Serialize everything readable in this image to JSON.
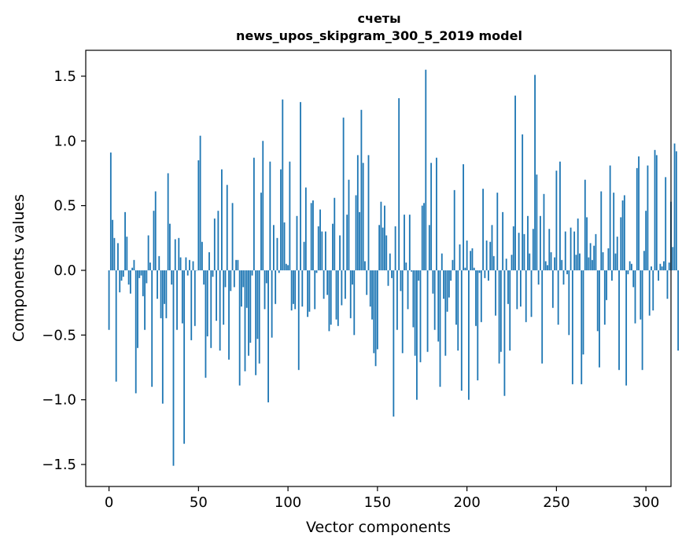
{
  "chart_data": {
    "type": "bar",
    "title_lines": [
      "счеты",
      "news_upos_skipgram_300_5_2019 model"
    ],
    "xlabel": "Vector components",
    "ylabel": "Components values",
    "xlim": [
      -13,
      314
    ],
    "ylim": [
      -1.67,
      1.7
    ],
    "xticks": [
      0,
      50,
      100,
      150,
      200,
      250,
      300
    ],
    "yticks": [
      -1.5,
      -1.0,
      -0.5,
      0.0,
      0.5,
      1.0,
      1.5
    ],
    "ytick_labels": [
      "−1.5",
      "−1.0",
      "−0.5",
      "0.0",
      "0.5",
      "1.0",
      "1.5"
    ],
    "bar_color": "#1f77b4",
    "grid": false,
    "values": [
      -0.46,
      0.91,
      0.39,
      0.25,
      -0.86,
      0.21,
      -0.17,
      -0.08,
      -0.05,
      0.45,
      0.26,
      -0.11,
      -0.18,
      0.02,
      0.08,
      -0.95,
      -0.6,
      -0.06,
      -0.04,
      -0.2,
      -0.46,
      -0.1,
      0.27,
      0.06,
      -0.9,
      0.46,
      0.61,
      -0.22,
      0.11,
      -0.37,
      -1.03,
      -0.26,
      -0.37,
      0.75,
      0.36,
      -0.11,
      -1.51,
      0.24,
      -0.46,
      0.25,
      0.1,
      -0.41,
      -1.34,
      0.1,
      -0.04,
      0.08,
      -0.54,
      0.07,
      -0.43,
      0.0,
      0.85,
      1.04,
      0.22,
      -0.11,
      -0.83,
      -0.51,
      0.14,
      -0.6,
      -0.05,
      0.4,
      -0.39,
      0.46,
      -0.62,
      0.78,
      -0.42,
      -0.13,
      0.66,
      -0.69,
      -0.16,
      0.52,
      -0.13,
      0.08,
      0.08,
      -0.89,
      -0.28,
      -0.13,
      -0.78,
      -0.29,
      -0.66,
      -0.56,
      -0.04,
      0.87,
      -0.81,
      -0.53,
      -0.72,
      0.6,
      1.0,
      -0.3,
      -0.1,
      -1.02,
      0.84,
      -0.52,
      0.35,
      -0.26,
      0.25,
      -0.02,
      0.78,
      1.32,
      0.37,
      0.05,
      0.04,
      0.84,
      -0.31,
      -0.26,
      -0.3,
      0.42,
      -0.77,
      1.3,
      -0.28,
      0.22,
      0.64,
      -0.36,
      -0.32,
      0.52,
      0.54,
      -0.3,
      -0.02,
      0.34,
      0.47,
      0.3,
      -0.22,
      0.3,
      -0.19,
      -0.47,
      -0.42,
      0.36,
      0.56,
      -0.38,
      -0.43,
      0.27,
      -0.27,
      1.18,
      -0.22,
      0.43,
      0.7,
      -0.37,
      -0.11,
      -0.5,
      0.58,
      0.89,
      0.45,
      1.24,
      0.83,
      0.07,
      -0.19,
      0.89,
      -0.28,
      -0.38,
      -0.64,
      -0.74,
      -0.61,
      0.35,
      0.53,
      0.33,
      0.5,
      0.27,
      -0.12,
      0.13,
      -0.06,
      -1.13,
      0.34,
      -0.46,
      1.33,
      -0.16,
      -0.64,
      0.43,
      0.06,
      -0.3,
      0.43,
      -0.01,
      -0.44,
      -0.66,
      -1.0,
      -0.08,
      -0.71,
      0.5,
      0.52,
      1.55,
      -0.63,
      0.35,
      0.83,
      -0.18,
      -0.46,
      0.87,
      -0.55,
      -0.9,
      0.13,
      -0.22,
      -0.66,
      -0.32,
      -0.21,
      -0.08,
      0.08,
      0.62,
      -0.42,
      -0.62,
      0.2,
      -0.93,
      0.82,
      0.02,
      0.23,
      -1.0,
      0.15,
      0.17,
      0.02,
      -0.43,
      -0.85,
      -0.02,
      -0.4,
      0.63,
      -0.06,
      0.23,
      -0.08,
      0.22,
      0.35,
      0.11,
      -0.35,
      0.6,
      -0.72,
      -0.63,
      0.45,
      -0.97,
      0.09,
      -0.26,
      -0.62,
      0.12,
      0.34,
      1.35,
      -0.3,
      0.29,
      -0.28,
      1.05,
      0.28,
      -0.4,
      0.42,
      0.13,
      -0.36,
      0.32,
      1.51,
      0.74,
      -0.11,
      0.42,
      -0.72,
      0.59,
      0.07,
      0.04,
      0.32,
      0.14,
      -0.29,
      0.1,
      0.77,
      -0.42,
      0.84,
      0.08,
      -0.11,
      0.3,
      -0.03,
      -0.5,
      0.33,
      -0.88,
      0.3,
      0.12,
      0.4,
      0.13,
      -0.88,
      -0.65,
      0.7,
      0.41,
      0.1,
      0.21,
      0.08,
      0.19,
      0.28,
      -0.47,
      -0.75,
      0.61,
      0.14,
      -0.42,
      -0.23,
      0.17,
      0.81,
      -0.08,
      0.6,
      0.13,
      0.26,
      -0.77,
      0.41,
      0.54,
      0.58,
      -0.89,
      -0.03,
      0.07,
      0.05,
      -0.13,
      -0.41,
      0.79,
      0.88,
      -0.38,
      -0.77,
      0.15,
      0.46,
      0.81,
      -0.35,
      0.03,
      -0.31,
      0.93,
      0.89,
      -0.08,
      0.05,
      0.03,
      0.07,
      0.72,
      -0.22,
      0.06,
      0.53,
      0.18,
      0.98,
      0.92,
      -0.62
    ]
  }
}
